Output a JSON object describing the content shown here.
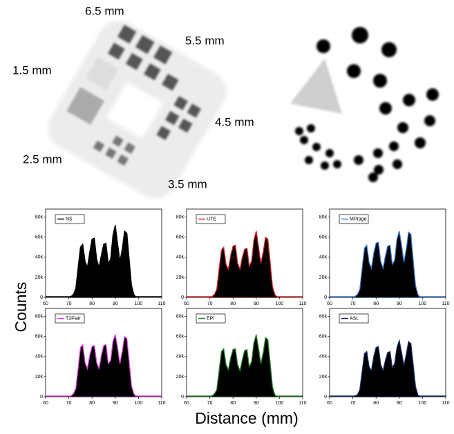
{
  "images": {
    "labels": [
      "6.5 mm",
      "5.5 mm",
      "1.5 mm",
      "4.5 mm",
      "2.5 mm",
      "3.5 mm"
    ]
  },
  "figure": {
    "ylabel": "Counts",
    "xlabel": "Distance (mm)"
  },
  "chart_data": [
    {
      "type": "area",
      "fill": "#000000",
      "legend": "upper left",
      "x": [
        70,
        71,
        72,
        73,
        74,
        75,
        76,
        77,
        78,
        79,
        80,
        81,
        82,
        83,
        84,
        85,
        86,
        87,
        88,
        89,
        90,
        91,
        92,
        93,
        94,
        95,
        96,
        97,
        98,
        99
      ],
      "series": [
        {
          "name": "NS",
          "color": "#000000",
          "values": [
            0,
            1000,
            3000,
            9000,
            30000,
            50000,
            53000,
            36000,
            30000,
            45000,
            58000,
            59000,
            38000,
            30000,
            42000,
            53000,
            54000,
            34000,
            38000,
            62000,
            72000,
            54000,
            36000,
            48000,
            66000,
            64000,
            38000,
            12000,
            3000,
            0
          ]
        }
      ],
      "xlim": [
        60,
        110
      ],
      "xticks": [
        60,
        70,
        80,
        90,
        100,
        110
      ],
      "ylim": [
        0,
        88000
      ],
      "yticks": [
        0,
        {
          "value": 20000,
          "label": "20k"
        },
        {
          "value": 40000,
          "label": "40k"
        },
        {
          "value": 60000,
          "label": "60k"
        },
        {
          "value": 80000,
          "label": "80k"
        }
      ]
    },
    {
      "type": "area",
      "fill": "#000000",
      "legend": "upper left",
      "x": [
        70,
        71,
        72,
        73,
        74,
        75,
        76,
        77,
        78,
        79,
        80,
        81,
        82,
        83,
        84,
        85,
        86,
        87,
        88,
        89,
        90,
        91,
        92,
        93,
        94,
        95,
        96,
        97,
        98,
        99
      ],
      "series": [
        {
          "name": "UTE",
          "color": "#e02020",
          "values": [
            0,
            1000,
            3000,
            8000,
            28000,
            47000,
            50000,
            33000,
            28000,
            42000,
            51000,
            52000,
            34000,
            28000,
            40000,
            48000,
            49000,
            31000,
            36000,
            57000,
            66000,
            50000,
            34000,
            45000,
            60000,
            58000,
            35000,
            11000,
            3000,
            0
          ]
        }
      ],
      "xlim": [
        60,
        110
      ],
      "xticks": [
        60,
        70,
        80,
        90,
        100,
        110
      ],
      "ylim": [
        0,
        88000
      ],
      "yticks": [
        0,
        {
          "value": 20000,
          "label": "20k"
        },
        {
          "value": 40000,
          "label": "40k"
        },
        {
          "value": 60000,
          "label": "60k"
        },
        {
          "value": 80000,
          "label": "80k"
        }
      ]
    },
    {
      "type": "area",
      "fill": "#000000",
      "legend": "upper left",
      "x": [
        70,
        71,
        72,
        73,
        74,
        75,
        76,
        77,
        78,
        79,
        80,
        81,
        82,
        83,
        84,
        85,
        86,
        87,
        88,
        89,
        90,
        91,
        92,
        93,
        94,
        95,
        96,
        97,
        98,
        99
      ],
      "series": [
        {
          "name": "MPrage",
          "color": "#3a7bd5",
          "values": [
            0,
            1000,
            3000,
            8000,
            29000,
            49000,
            52000,
            35000,
            29000,
            44000,
            54000,
            55000,
            36000,
            29000,
            41000,
            51000,
            52000,
            33000,
            37000,
            58000,
            66000,
            52000,
            35000,
            48000,
            65000,
            63000,
            37000,
            12000,
            3000,
            0
          ]
        }
      ],
      "xlim": [
        60,
        110
      ],
      "xticks": [
        60,
        70,
        80,
        90,
        100,
        110
      ],
      "ylim": [
        0,
        88000
      ],
      "yticks": [
        0,
        {
          "value": 20000,
          "label": "20k"
        },
        {
          "value": 40000,
          "label": "40k"
        },
        {
          "value": 60000,
          "label": "60k"
        },
        {
          "value": 80000,
          "label": "80k"
        }
      ]
    },
    {
      "type": "area",
      "fill": "#000000",
      "legend": "upper left",
      "x": [
        70,
        71,
        72,
        73,
        74,
        75,
        76,
        77,
        78,
        79,
        80,
        81,
        82,
        83,
        84,
        85,
        86,
        87,
        88,
        89,
        90,
        91,
        92,
        93,
        94,
        95,
        96,
        97,
        98,
        99
      ],
      "series": [
        {
          "name": "T2Flair",
          "color": "#e040e0",
          "values": [
            0,
            1000,
            3000,
            8000,
            28000,
            49000,
            52000,
            34000,
            28000,
            41000,
            50000,
            51000,
            34000,
            28000,
            41000,
            51000,
            52000,
            33000,
            36000,
            55000,
            62000,
            49000,
            33000,
            45000,
            60000,
            58000,
            35000,
            11000,
            3000,
            0
          ]
        }
      ],
      "xlim": [
        60,
        110
      ],
      "xticks": [
        60,
        70,
        80,
        90,
        100,
        110
      ],
      "ylim": [
        0,
        88000
      ],
      "yticks": [
        0,
        {
          "value": 20000,
          "label": "20k"
        },
        {
          "value": 40000,
          "label": "40k"
        },
        {
          "value": 60000,
          "label": "60k"
        },
        {
          "value": 80000,
          "label": "80k"
        }
      ]
    },
    {
      "type": "area",
      "fill": "#000000",
      "legend": "upper left",
      "x": [
        70,
        71,
        72,
        73,
        74,
        75,
        76,
        77,
        78,
        79,
        80,
        81,
        82,
        83,
        84,
        85,
        86,
        87,
        88,
        89,
        90,
        91,
        92,
        93,
        94,
        95,
        96,
        97,
        98,
        99
      ],
      "series": [
        {
          "name": "EPI",
          "color": "#2a8a2a",
          "values": [
            0,
            1000,
            3000,
            7000,
            26000,
            45000,
            48000,
            32000,
            27000,
            39000,
            47000,
            48000,
            32000,
            26000,
            37000,
            46000,
            47000,
            30000,
            35000,
            54000,
            62000,
            48000,
            33000,
            44000,
            59000,
            57000,
            34000,
            10000,
            2000,
            0
          ]
        }
      ],
      "xlim": [
        60,
        110
      ],
      "xticks": [
        60,
        70,
        80,
        90,
        100,
        110
      ],
      "ylim": [
        0,
        88000
      ],
      "yticks": [
        0,
        {
          "value": 20000,
          "label": "20k"
        },
        {
          "value": 40000,
          "label": "40k"
        },
        {
          "value": 60000,
          "label": "60k"
        },
        {
          "value": 80000,
          "label": "80k"
        }
      ]
    },
    {
      "type": "area",
      "fill": "#000000",
      "legend": "upper left",
      "x": [
        70,
        71,
        72,
        73,
        74,
        75,
        76,
        77,
        78,
        79,
        80,
        81,
        82,
        83,
        84,
        85,
        86,
        87,
        88,
        89,
        90,
        91,
        92,
        93,
        94,
        95,
        96,
        97,
        98,
        99
      ],
      "series": [
        {
          "name": "ASL",
          "color": "#1a2a6a",
          "values": [
            0,
            1000,
            2000,
            7000,
            25000,
            43000,
            45000,
            30000,
            26000,
            40000,
            49000,
            50000,
            32000,
            26000,
            36000,
            44000,
            45000,
            29000,
            33000,
            49000,
            56000,
            44000,
            31000,
            42000,
            55000,
            53000,
            32000,
            10000,
            2000,
            0
          ]
        }
      ],
      "xlim": [
        60,
        110
      ],
      "xticks": [
        60,
        70,
        80,
        90,
        100,
        110
      ],
      "ylim": [
        0,
        88000
      ],
      "yticks": [
        0,
        {
          "value": 20000,
          "label": "20k"
        },
        {
          "value": 40000,
          "label": "40k"
        },
        {
          "value": 60000,
          "label": "60k"
        },
        {
          "value": 80000,
          "label": "80k"
        }
      ]
    }
  ]
}
